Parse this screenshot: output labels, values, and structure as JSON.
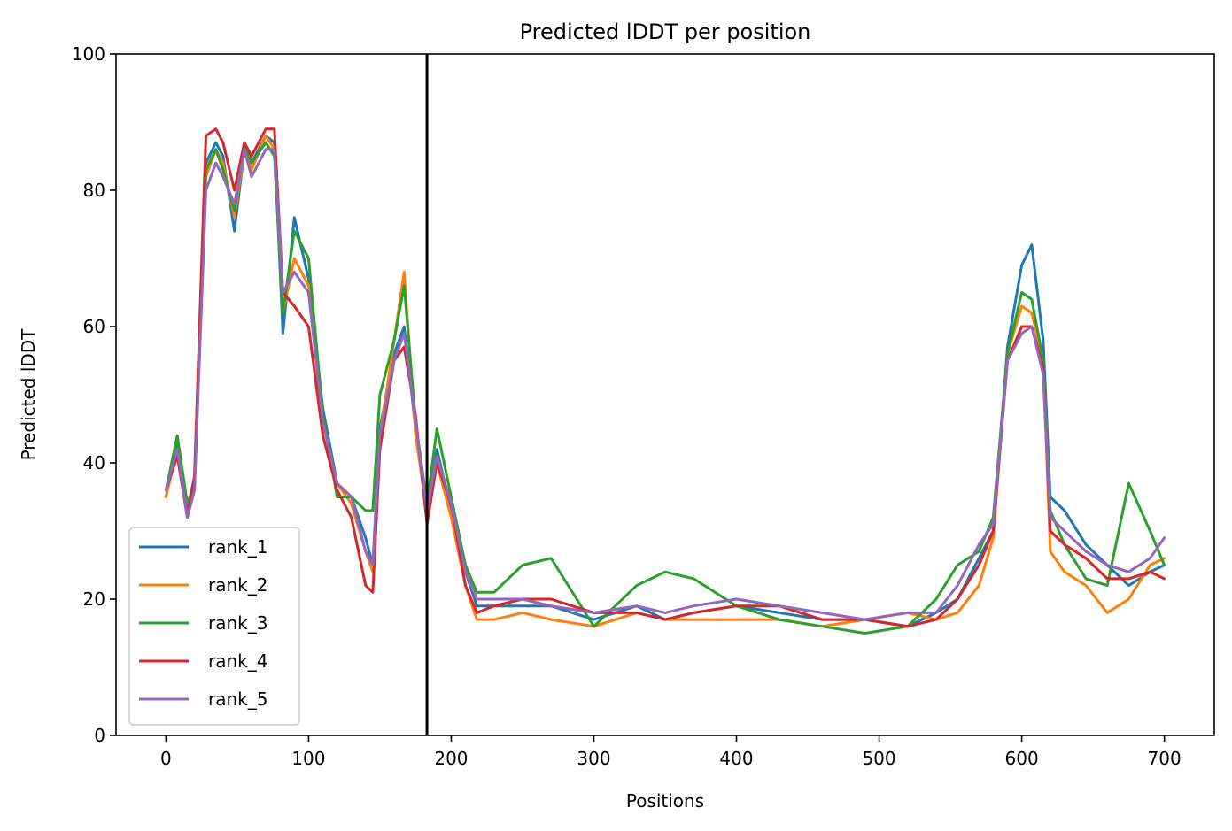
{
  "chart_data": {
    "type": "line",
    "title": "Predicted lDDT per position",
    "xlabel": "Positions",
    "ylabel": "Predicted lDDT",
    "xlim": [
      -35,
      735
    ],
    "ylim": [
      0,
      100
    ],
    "xticks": [
      0,
      100,
      200,
      300,
      400,
      500,
      600,
      700
    ],
    "yticks": [
      0,
      20,
      40,
      60,
      80,
      100
    ],
    "grid": false,
    "legend_position": "lower-left",
    "vline": {
      "x": 183,
      "color": "#000000"
    },
    "x": [
      0,
      8,
      15,
      20,
      28,
      35,
      40,
      48,
      55,
      60,
      70,
      76,
      82,
      90,
      100,
      110,
      120,
      130,
      140,
      145,
      150,
      160,
      167,
      175,
      183,
      190,
      200,
      210,
      218,
      230,
      250,
      270,
      300,
      330,
      350,
      370,
      400,
      430,
      460,
      490,
      520,
      540,
      555,
      570,
      580,
      590,
      600,
      607,
      615,
      620,
      630,
      645,
      660,
      675,
      690,
      700
    ],
    "series": [
      {
        "name": "rank_1",
        "color": "#1f77b4",
        "values": [
          35,
          43,
          33,
          38,
          84,
          87,
          85,
          74,
          86,
          84,
          88,
          87,
          59,
          76,
          67,
          48,
          37,
          35,
          29,
          25,
          45,
          56,
          60,
          45,
          32,
          42,
          33,
          24,
          19,
          19,
          19,
          19,
          17,
          19,
          17,
          18,
          19,
          18,
          17,
          17,
          16,
          18,
          20,
          26,
          30,
          57,
          69,
          72,
          58,
          35,
          33,
          28,
          25,
          22,
          24,
          25
        ]
      },
      {
        "name": "rank_2",
        "color": "#ff7f0e",
        "values": [
          35,
          42,
          32,
          36,
          82,
          86,
          84,
          76,
          86,
          83,
          88,
          86,
          62,
          70,
          66,
          46,
          37,
          34,
          27,
          24,
          44,
          58,
          68,
          44,
          33,
          40,
          32,
          22,
          17,
          17,
          18,
          17,
          16,
          18,
          17,
          17,
          17,
          17,
          16,
          17,
          18,
          17,
          18,
          22,
          29,
          56,
          63,
          62,
          55,
          27,
          24,
          22,
          18,
          20,
          25,
          26
        ]
      },
      {
        "name": "rank_3",
        "color": "#2ca02c",
        "values": [
          36,
          44,
          34,
          37,
          83,
          86,
          83,
          77,
          87,
          84,
          87,
          85,
          62,
          74,
          70,
          47,
          35,
          35,
          33,
          33,
          50,
          58,
          66,
          46,
          34,
          45,
          35,
          25,
          21,
          21,
          25,
          26,
          16,
          22,
          24,
          23,
          19,
          17,
          16,
          15,
          16,
          20,
          25,
          27,
          32,
          56,
          65,
          64,
          55,
          33,
          28,
          23,
          22,
          37,
          30,
          25
        ]
      },
      {
        "name": "rank_4",
        "color": "#d62728",
        "values": [
          36,
          41,
          32,
          38,
          88,
          89,
          87,
          80,
          87,
          85,
          89,
          89,
          65,
          63,
          60,
          44,
          36,
          32,
          22,
          21,
          42,
          55,
          57,
          47,
          31,
          40,
          34,
          22,
          18,
          19,
          20,
          20,
          18,
          18,
          17,
          18,
          19,
          19,
          17,
          17,
          16,
          17,
          20,
          25,
          30,
          55,
          60,
          60,
          54,
          30,
          28,
          26,
          23,
          23,
          24,
          23
        ]
      },
      {
        "name": "rank_5",
        "color": "#9467bd",
        "values": [
          36,
          42,
          32,
          36,
          80,
          84,
          82,
          78,
          86,
          82,
          86,
          86,
          65,
          68,
          65,
          46,
          37,
          35,
          27,
          25,
          44,
          55,
          59,
          46,
          33,
          41,
          34,
          24,
          20,
          20,
          20,
          19,
          18,
          19,
          18,
          19,
          20,
          19,
          18,
          17,
          18,
          18,
          22,
          28,
          31,
          55,
          59,
          60,
          53,
          32,
          30,
          27,
          25,
          24,
          26,
          29
        ]
      }
    ]
  }
}
